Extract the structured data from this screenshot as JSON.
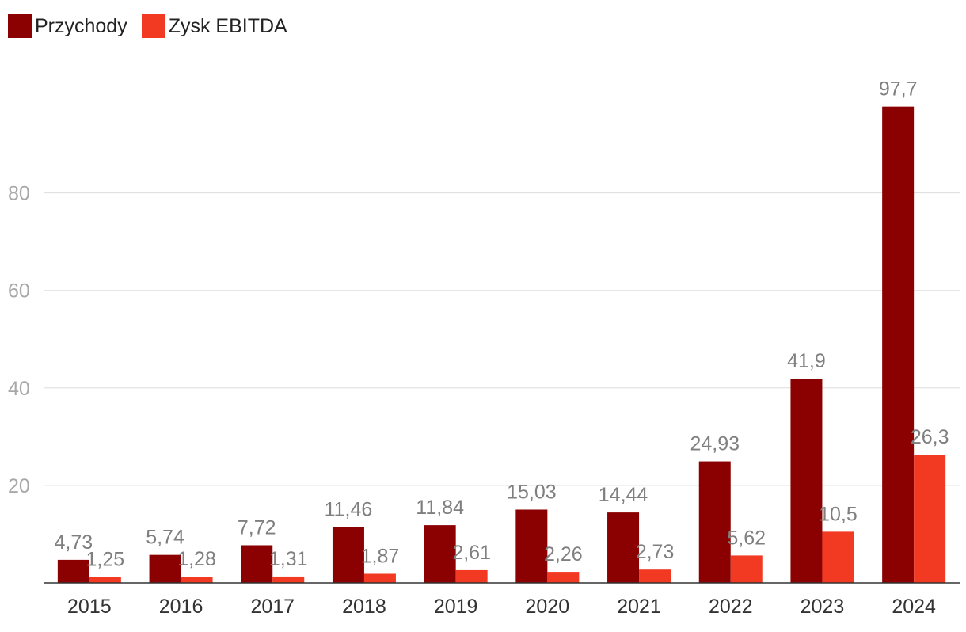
{
  "chart_data": {
    "type": "bar",
    "title": "",
    "xlabel": "",
    "ylabel": "",
    "categories": [
      "2015",
      "2016",
      "2017",
      "2018",
      "2019",
      "2020",
      "2021",
      "2022",
      "2023",
      "2024"
    ],
    "series": [
      {
        "name": "Przychody",
        "color": "#8b0000",
        "values": [
          4.73,
          5.74,
          7.72,
          11.46,
          11.84,
          15.03,
          14.44,
          24.93,
          41.9,
          97.7
        ],
        "labels": [
          "4,73",
          "5,74",
          "7,72",
          "11,46",
          "11,84",
          "15,03",
          "14,44",
          "24,93",
          "41,9",
          "97,7"
        ]
      },
      {
        "name": "Zysk EBITDA",
        "color": "#f23a23",
        "values": [
          1.25,
          1.28,
          1.31,
          1.87,
          2.61,
          2.26,
          2.73,
          5.62,
          10.5,
          26.3
        ],
        "labels": [
          "1,25",
          "1,28",
          "1,31",
          "1,87",
          "2,61",
          "2,26",
          "2,73",
          "5,62",
          "10,5",
          "26,3"
        ]
      }
    ],
    "yticks": [
      20,
      40,
      60,
      80
    ],
    "ylim": [
      0,
      100
    ],
    "grid": true,
    "legend_position": "top-left"
  }
}
